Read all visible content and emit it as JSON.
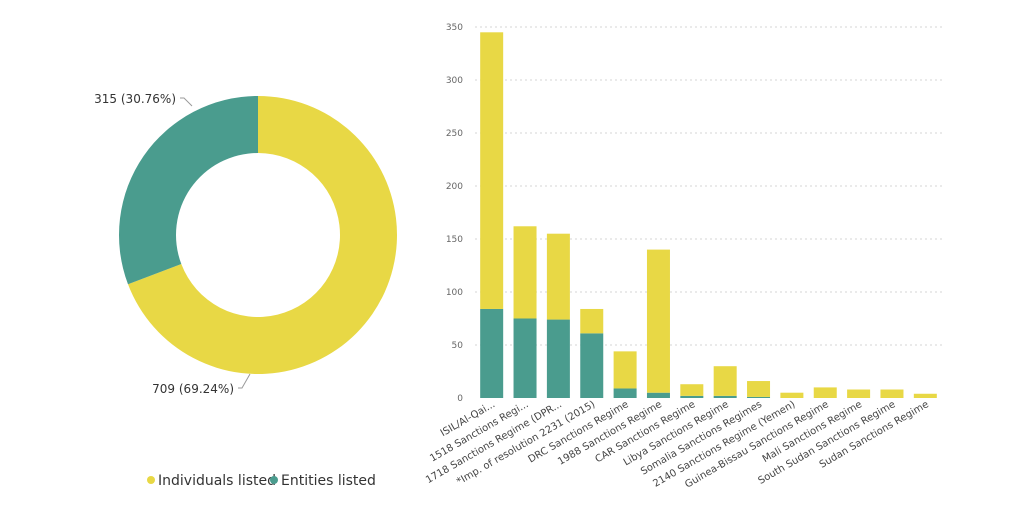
{
  "chart_data": [
    {
      "type": "pie",
      "variant": "donut",
      "slices": [
        {
          "name": "Individuals listed",
          "value": 709,
          "label": "709 (69.24%)",
          "color": "#E8D845"
        },
        {
          "name": "Entities listed",
          "value": 315,
          "label": "315 (30.76%)",
          "color": "#4A9C8E"
        }
      ],
      "legend": {
        "placement": "bottom",
        "items": [
          "Individuals listed",
          "Entities listed"
        ]
      }
    },
    {
      "type": "bar",
      "stacked": true,
      "categories": [
        "ISIL/Al-Qai...",
        "1518 Sanctions Regi...",
        "1718 Sanctions Regime (DPR...",
        "*Imp. of resolution 2231 (2015)",
        "DRC Sanctions Regime",
        "1988 Sanctions Regime",
        "CAR Sanctions Regime",
        "Libya Sanctions Regime",
        "Somalia Sanctions Regimes",
        "2140 Sanctions Regime (Yemen)",
        "Guinea-Bissau Sanctions Regime",
        "Mali Sanctions Regime",
        "South Sudan Sanctions Regime",
        "Sudan Sanctions Regime"
      ],
      "series": [
        {
          "key": "entities",
          "color": "#4A9C8E",
          "values": [
            84,
            75,
            74,
            61,
            9,
            5,
            2,
            2,
            1,
            0,
            0,
            0,
            0,
            0
          ]
        },
        {
          "key": "individuals",
          "color": "#E8D845",
          "values": [
            261,
            87,
            81,
            23,
            35,
            135,
            11,
            28,
            15,
            5,
            10,
            8,
            8,
            4
          ]
        }
      ],
      "yticks": [
        0,
        50,
        100,
        150,
        200,
        250,
        300,
        350
      ],
      "ylim": [
        0,
        350
      ],
      "grid": true,
      "xlabel": "",
      "ylabel": ""
    }
  ]
}
